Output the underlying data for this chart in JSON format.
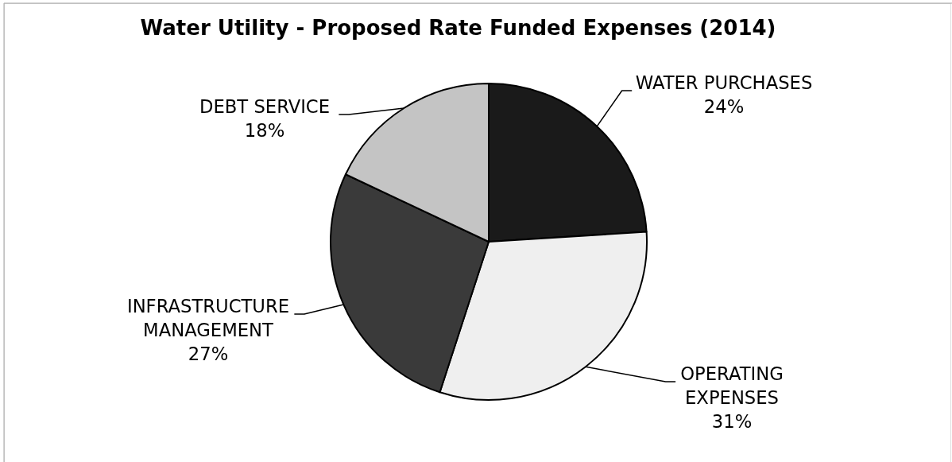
{
  "chart_data": {
    "type": "pie",
    "title": "Water Utility - Proposed Rate Funded Expenses (2014)",
    "categories": [
      "WATER PURCHASES",
      "OPERATING EXPENSES",
      "INFRASTRUCTURE MANAGEMENT",
      "DEBT SERVICE"
    ],
    "values": [
      24,
      31,
      27,
      18
    ],
    "colors": [
      "#1a1a1a",
      "#efefef",
      "#3a3a3a",
      "#c4c4c4"
    ],
    "value_labels": [
      "24%",
      "31%",
      "27%",
      "18%"
    ]
  }
}
